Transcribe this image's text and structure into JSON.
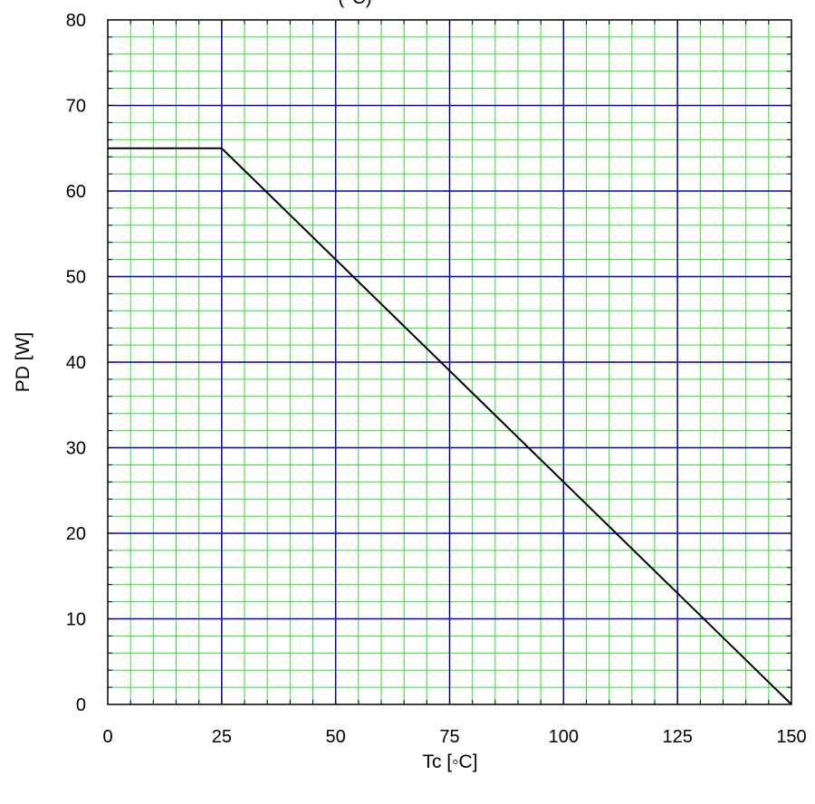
{
  "chart_data": {
    "type": "line",
    "title": "(°C)",
    "xlabel": "Tc [◦C]",
    "ylabel": "PD [W]",
    "xlim": [
      0,
      150
    ],
    "ylim": [
      0,
      80
    ],
    "x_ticks": [
      "0",
      "25",
      "50",
      "75",
      "100",
      "125",
      "150"
    ],
    "y_ticks": [
      "0",
      "10",
      "20",
      "30",
      "40",
      "50",
      "60",
      "70",
      "80"
    ],
    "grid": true,
    "minor_grid_step": {
      "x": 5,
      "y": 2
    },
    "series": [
      {
        "x": [
          0,
          25,
          150
        ],
        "y": [
          65,
          65,
          0
        ]
      }
    ],
    "colors": {
      "line": "#000000",
      "major_grid": "#0000b0",
      "minor_grid": "#33dd33",
      "frame": "#000000"
    }
  }
}
